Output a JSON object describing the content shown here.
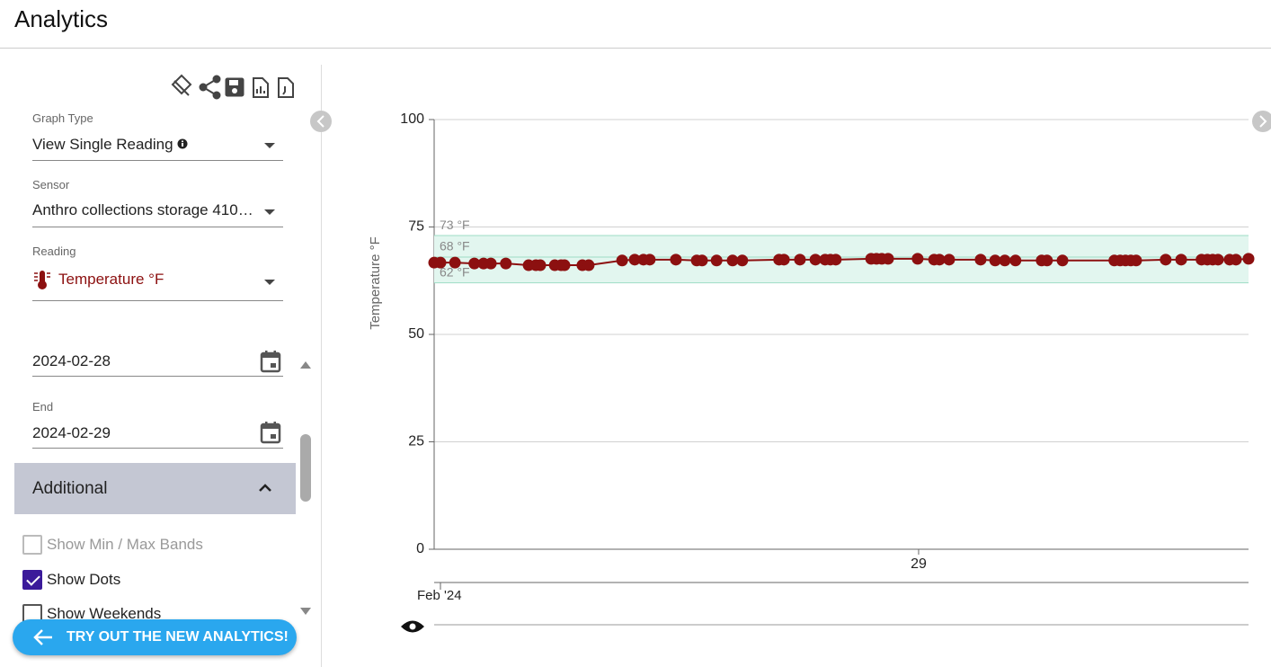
{
  "header": {
    "title": "Analytics"
  },
  "sidebar": {
    "fields": [
      {
        "label": "Graph Type",
        "value": "View Single Reading"
      },
      {
        "label": "Sensor",
        "value": "Anthro collections storage 410…"
      },
      {
        "label": "Reading",
        "value": "Temperature °F"
      }
    ],
    "dates": [
      {
        "value": "2024-02-28"
      },
      {
        "label": "End",
        "value": "2024-02-29"
      }
    ],
    "section": "Additional",
    "checkboxes": [
      {
        "label": "Show Min / Max Bands",
        "checked": false,
        "disabled": true
      },
      {
        "label": "Show Dots",
        "checked": true,
        "disabled": false
      },
      {
        "label": "Show Weekends",
        "checked": false,
        "disabled": false
      }
    ]
  },
  "button": "TRY OUT THE NEW ANALYTICS!",
  "chart_data": {
    "type": "line",
    "y_label": "Temperature °F",
    "color": "#8c1010",
    "dots": true,
    "grid": true,
    "x": [
      28.0,
      28.013,
      28.043,
      28.083,
      28.102,
      28.117,
      28.148,
      28.195,
      28.21,
      28.219,
      28.249,
      28.262,
      28.269,
      28.306,
      28.319,
      28.388,
      28.414,
      28.432,
      28.445,
      28.499,
      28.542,
      28.553,
      28.583,
      28.616,
      28.636,
      28.712,
      28.722,
      28.755,
      28.787,
      28.807,
      28.818,
      28.829,
      28.902,
      28.913,
      28.924,
      28.937,
      28.998,
      29.032,
      29.043,
      29.063,
      29.128,
      29.158,
      29.178,
      29.2,
      29.254,
      29.265,
      29.297,
      29.404,
      29.416,
      29.427,
      29.438,
      29.449,
      29.51,
      29.542,
      29.584,
      29.596,
      29.607,
      29.618,
      29.642,
      29.655,
      29.681
    ],
    "values": [
      66.7,
      66.7,
      66.7,
      66.5,
      66.5,
      66.5,
      66.5,
      66.1,
      66.1,
      66.1,
      66.1,
      66.1,
      66.1,
      66.1,
      66.1,
      67.2,
      67.4,
      67.4,
      67.4,
      67.4,
      67.2,
      67.2,
      67.2,
      67.2,
      67.2,
      67.4,
      67.4,
      67.4,
      67.4,
      67.4,
      67.4,
      67.4,
      67.6,
      67.6,
      67.6,
      67.6,
      67.6,
      67.4,
      67.4,
      67.4,
      67.4,
      67.2,
      67.2,
      67.2,
      67.2,
      67.2,
      67.2,
      67.2,
      67.2,
      67.2,
      67.2,
      67.2,
      67.4,
      67.4,
      67.4,
      67.4,
      67.4,
      67.4,
      67.4,
      67.4,
      67.6
    ],
    "xlim": [
      28.0,
      29.681
    ],
    "xticks": [
      29
    ],
    "ylim": [
      0,
      100
    ],
    "yticks": [
      0,
      25,
      50,
      75,
      100
    ],
    "bands": [
      {
        "value": 73,
        "label": "73 °F"
      },
      {
        "value": 68,
        "label": "68 °F"
      },
      {
        "value": 62,
        "label": "62 °F"
      }
    ],
    "band_color": "#e2f6ef",
    "navigator_label": "Feb '24"
  }
}
